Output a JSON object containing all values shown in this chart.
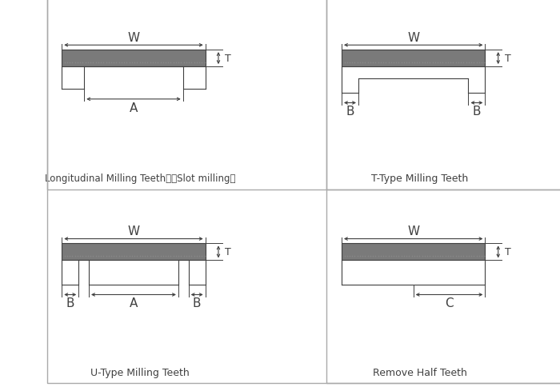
{
  "panels": [
    {
      "title": "Longitudinal Milling Teeth　（Slot milling）",
      "type": "longitudinal"
    },
    {
      "title": "T-Type Milling Teeth",
      "type": "t_type"
    },
    {
      "title": "U-Type Milling Teeth",
      "type": "u_type"
    },
    {
      "title": "Remove Half Teeth",
      "type": "remove_half"
    }
  ],
  "belt_color_top": "#7a7a7a",
  "belt_color_bot": "#b0b0b0",
  "line_color": "#404040",
  "bg_color": "#ffffff",
  "border_color": "#aaaaaa",
  "dot_color": "#888888"
}
